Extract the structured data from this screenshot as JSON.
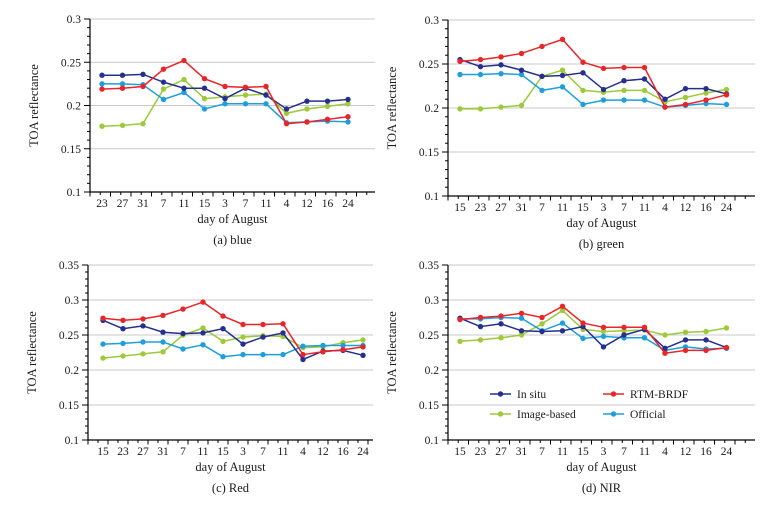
{
  "figure": {
    "background": "#ffffff",
    "xlabel": "day of August",
    "ylabel": "TOA reflectance"
  },
  "colors": {
    "in_situ": "#26308C",
    "rtm_brdf": "#E82529",
    "image_based": "#9DC93B",
    "official": "#1E9FDB",
    "gridline": "#C9C9C9",
    "axis": "#000000",
    "text": "#1B1B1B"
  },
  "legend": {
    "position": "inside panel (d), lower middle",
    "items": [
      {
        "label": "In situ",
        "color": "#26308C"
      },
      {
        "label": "RTM-BRDF",
        "color": "#E82529"
      },
      {
        "label": "Image-based",
        "color": "#9DC93B"
      },
      {
        "label": "Official",
        "color": "#1E9FDB"
      }
    ]
  },
  "chart_data": [
    {
      "type": "line",
      "title": "(a) blue",
      "xlabel": "day of August",
      "ylabel": "TOA reflectance",
      "ylim": [
        0.1,
        0.3
      ],
      "yticks": [
        "0.1",
        "0.15",
        "0.2",
        "0.25",
        "0.3"
      ],
      "grid": true,
      "legend_visible": false,
      "categories": [
        "23",
        "27",
        "31",
        "7",
        "11",
        "15",
        "3",
        "7",
        "11",
        "4",
        "12",
        "16",
        "24"
      ],
      "series": [
        {
          "name": "In situ",
          "color": "#26308C",
          "values": [
            0.235,
            0.235,
            0.236,
            0.227,
            0.22,
            0.22,
            0.208,
            0.22,
            0.212,
            0.196,
            0.205,
            0.205,
            0.207
          ]
        },
        {
          "name": "RTM-BRDF",
          "color": "#E82529",
          "values": [
            0.219,
            0.22,
            0.222,
            0.242,
            0.252,
            0.231,
            0.222,
            0.221,
            0.222,
            0.179,
            0.181,
            0.184,
            0.187
          ]
        },
        {
          "name": "Image-based",
          "color": "#9DC93B",
          "values": [
            0.176,
            0.177,
            0.179,
            0.219,
            0.23,
            0.208,
            0.21,
            0.212,
            0.213,
            0.191,
            0.196,
            0.199,
            0.202
          ]
        },
        {
          "name": "Official",
          "color": "#1E9FDB",
          "values": [
            0.225,
            0.225,
            0.224,
            0.207,
            0.215,
            0.196,
            0.202,
            0.202,
            0.202,
            0.18,
            0.181,
            0.182,
            0.181
          ]
        }
      ]
    },
    {
      "type": "line",
      "title": "(b) green",
      "xlabel": "day of August",
      "ylabel": "TOA reflectance",
      "ylim": [
        0.1,
        0.3
      ],
      "yticks": [
        "0.1",
        "0.15",
        "0.2",
        "0.25",
        "0.3"
      ],
      "grid": true,
      "legend_visible": false,
      "categories": [
        "15",
        "23",
        "27",
        "31",
        "7",
        "11",
        "15",
        "3",
        "7",
        "11",
        "4",
        "12",
        "16",
        "24"
      ],
      "series": [
        {
          "name": "In situ",
          "color": "#26308C",
          "values": [
            0.255,
            0.247,
            0.249,
            0.243,
            0.236,
            0.237,
            0.24,
            0.221,
            0.231,
            0.233,
            0.21,
            0.222,
            0.222,
            0.216
          ]
        },
        {
          "name": "RTM-BRDF",
          "color": "#E82529",
          "values": [
            0.253,
            0.255,
            0.258,
            0.262,
            0.27,
            0.278,
            0.252,
            0.245,
            0.246,
            0.246,
            0.201,
            0.204,
            0.209,
            0.215
          ]
        },
        {
          "name": "Image-based",
          "color": "#9DC93B",
          "values": [
            0.199,
            0.199,
            0.201,
            0.203,
            0.236,
            0.243,
            0.22,
            0.218,
            0.22,
            0.22,
            0.207,
            0.212,
            0.217,
            0.221
          ]
        },
        {
          "name": "Official",
          "color": "#1E9FDB",
          "values": [
            0.238,
            0.238,
            0.239,
            0.238,
            0.22,
            0.224,
            0.204,
            0.209,
            0.209,
            0.209,
            0.201,
            0.203,
            0.205,
            0.204
          ]
        }
      ]
    },
    {
      "type": "line",
      "title": "(c) Red",
      "xlabel": "day of August",
      "ylabel": "TOA reflectance",
      "ylim": [
        0.1,
        0.35
      ],
      "yticks": [
        "0.1",
        "0.15",
        "0.2",
        "0.25",
        "0.3",
        "0.35"
      ],
      "grid": true,
      "legend_visible": false,
      "categories": [
        "15",
        "23",
        "27",
        "31",
        "7",
        "11",
        "15",
        "3",
        "7",
        "11",
        "4",
        "12",
        "16",
        "24"
      ],
      "series": [
        {
          "name": "In situ",
          "color": "#26308C",
          "values": [
            0.271,
            0.259,
            0.263,
            0.254,
            0.252,
            0.253,
            0.259,
            0.237,
            0.247,
            0.253,
            0.215,
            0.227,
            0.228,
            0.221
          ]
        },
        {
          "name": "RTM-BRDF",
          "color": "#E82529",
          "values": [
            0.274,
            0.271,
            0.273,
            0.278,
            0.287,
            0.297,
            0.277,
            0.265,
            0.265,
            0.266,
            0.222,
            0.226,
            0.229,
            0.233
          ]
        },
        {
          "name": "Image-based",
          "color": "#9DC93B",
          "values": [
            0.217,
            0.22,
            0.223,
            0.226,
            0.25,
            0.26,
            0.241,
            0.247,
            0.249,
            0.248,
            0.232,
            0.233,
            0.239,
            0.243
          ]
        },
        {
          "name": "Official",
          "color": "#1E9FDB",
          "values": [
            0.237,
            0.238,
            0.24,
            0.24,
            0.23,
            0.236,
            0.219,
            0.222,
            0.222,
            0.222,
            0.234,
            0.235,
            0.235,
            0.235
          ]
        }
      ]
    },
    {
      "type": "line",
      "title": "(d) NIR",
      "xlabel": "day of August",
      "ylabel": "TOA reflectance",
      "ylim": [
        0.1,
        0.35
      ],
      "yticks": [
        "0.1",
        "0.15",
        "0.2",
        "0.25",
        "0.3",
        "0.35"
      ],
      "grid": true,
      "legend_visible": true,
      "categories": [
        "15",
        "23",
        "27",
        "31",
        "7",
        "11",
        "15",
        "3",
        "7",
        "11",
        "4",
        "12",
        "16",
        "24"
      ],
      "series": [
        {
          "name": "In situ",
          "color": "#26308C",
          "values": [
            0.274,
            0.262,
            0.266,
            0.256,
            0.255,
            0.256,
            0.262,
            0.233,
            0.25,
            0.258,
            0.231,
            0.243,
            0.243,
            0.232
          ]
        },
        {
          "name": "RTM-BRDF",
          "color": "#E82529",
          "values": [
            0.272,
            0.275,
            0.277,
            0.281,
            0.275,
            0.291,
            0.267,
            0.261,
            0.261,
            0.261,
            0.224,
            0.228,
            0.228,
            0.232
          ]
        },
        {
          "name": "Image-based",
          "color": "#9DC93B",
          "values": [
            0.241,
            0.243,
            0.246,
            0.25,
            0.266,
            0.285,
            0.258,
            0.255,
            0.256,
            0.257,
            0.25,
            0.254,
            0.255,
            0.26
          ]
        },
        {
          "name": "Official",
          "color": "#1E9FDB",
          "values": [
            0.273,
            0.273,
            0.275,
            0.274,
            0.256,
            0.267,
            0.245,
            0.248,
            0.246,
            0.246,
            0.228,
            0.233,
            0.23,
            0.231
          ]
        }
      ]
    }
  ]
}
